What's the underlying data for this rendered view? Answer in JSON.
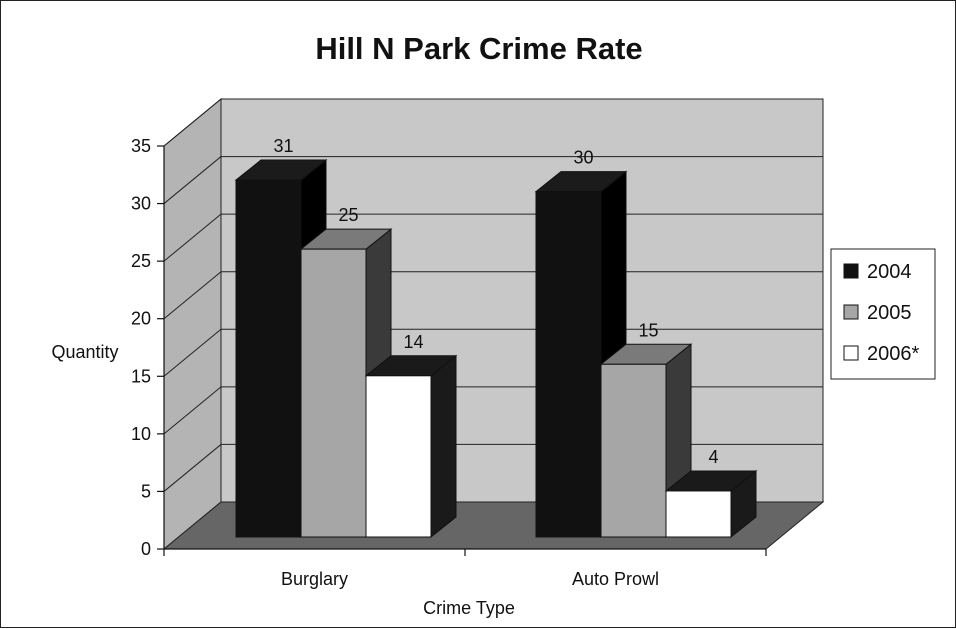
{
  "chart_data": {
    "type": "bar",
    "title": "Hill N Park Crime Rate",
    "xlabel": "Crime Type",
    "ylabel": "Quantity",
    "categories": [
      "Burglary",
      "Auto Prowl"
    ],
    "series": [
      {
        "name": "2004",
        "values": [
          31,
          30
        ],
        "color": "#111111"
      },
      {
        "name": "2005",
        "values": [
          25,
          15
        ],
        "color": "#a6a6a6"
      },
      {
        "name": "2006*",
        "values": [
          14,
          4
        ],
        "color": "#ffffff"
      }
    ],
    "ylim": [
      0,
      35
    ],
    "yticks": [
      0,
      5,
      10,
      15,
      20,
      25,
      30,
      35
    ],
    "grid": true,
    "legend_position": "right",
    "data_labels": true,
    "style": "3d-column"
  }
}
